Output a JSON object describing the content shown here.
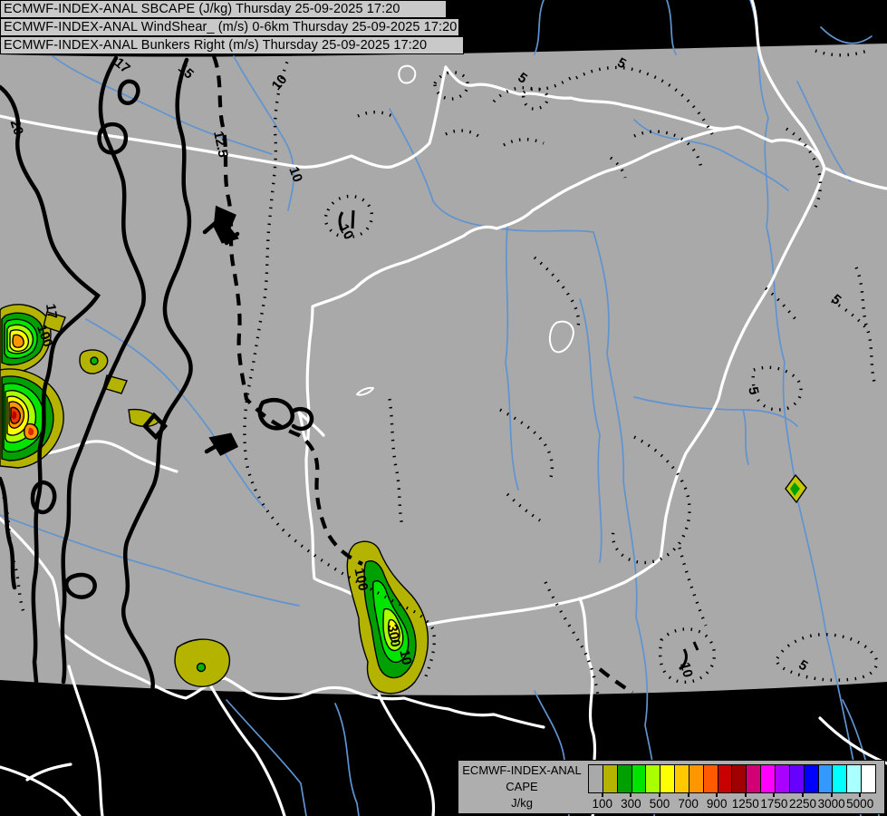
{
  "titles": [
    "ECMWF-INDEX-ANAL SBCAPE (J/kg) Thursday 25-09-2025 17:20",
    "ECMWF-INDEX-ANAL WindShear_ (m/s) 0-6km Thursday 25-09-2025 17:20",
    "ECMWF-INDEX-ANAL Bunkers Right (m/s) Thursday 25-09-2025 17:20"
  ],
  "legend": {
    "header_lines": [
      "ECMWF-INDEX-ANAL",
      "CAPE",
      "J/kg"
    ],
    "tick_labels": [
      "100",
      "300",
      "500",
      "700",
      "900",
      "1250",
      "1750",
      "2250",
      "3000",
      "5000"
    ],
    "colors": [
      "#a9a9a9",
      "#b3b300",
      "#00a000",
      "#00e400",
      "#aaff00",
      "#ffff00",
      "#ffc800",
      "#ff9600",
      "#ff5a00",
      "#c80000",
      "#a00000",
      "#d20074",
      "#ff00ff",
      "#aa00ff",
      "#6600ff",
      "#0000ff",
      "#3399ff",
      "#00ffff",
      "#aaffff",
      "#ffffff"
    ]
  },
  "contour_labels": {
    "v20": "20",
    "v17": "17",
    "v15": "15",
    "v12_5": "12.5",
    "v10": "10",
    "v5": "5",
    "v100": "100",
    "v300": "300"
  },
  "colors": {
    "map_background": "#a9a9a9",
    "outside_domain": "#000000",
    "river": "#6094d0",
    "border": "#ffffff",
    "contour": "#000000",
    "title_bar_bg": "#c9c9c9",
    "legend_bg": "#aeaeae"
  },
  "chart_data": {
    "type": "heatmap",
    "title": "ECMWF-INDEX-ANAL CAPE",
    "units": "J/kg",
    "valid_time": "Thursday 25-09-2025 17:20",
    "legend_boundary_labels": [
      100,
      300,
      500,
      700,
      900,
      1250,
      1750,
      2250,
      3000,
      5000
    ],
    "legend_colors": [
      "#a9a9a9",
      "#b3b300",
      "#00a000",
      "#00e400",
      "#aaff00",
      "#ffff00",
      "#ffc800",
      "#ff9600",
      "#ff5a00",
      "#c80000",
      "#a00000",
      "#d20074",
      "#ff00ff",
      "#aa00ff",
      "#6600ff",
      "#0000ff",
      "#3399ff",
      "#00ffff",
      "#aaffff",
      "#ffffff"
    ],
    "overlays": [
      {
        "name": "SBCAPE filled contours (J/kg)",
        "labeled_values": [
          100,
          300
        ]
      },
      {
        "name": "WindShear_ 0-6km contours (m/s)",
        "solid_labels": [
          15,
          17,
          20
        ],
        "dashed_labels": [
          12.5
        ],
        "dotted_labels": [
          5,
          10
        ]
      },
      {
        "name": "Bunkers Right (m/s)"
      }
    ]
  }
}
